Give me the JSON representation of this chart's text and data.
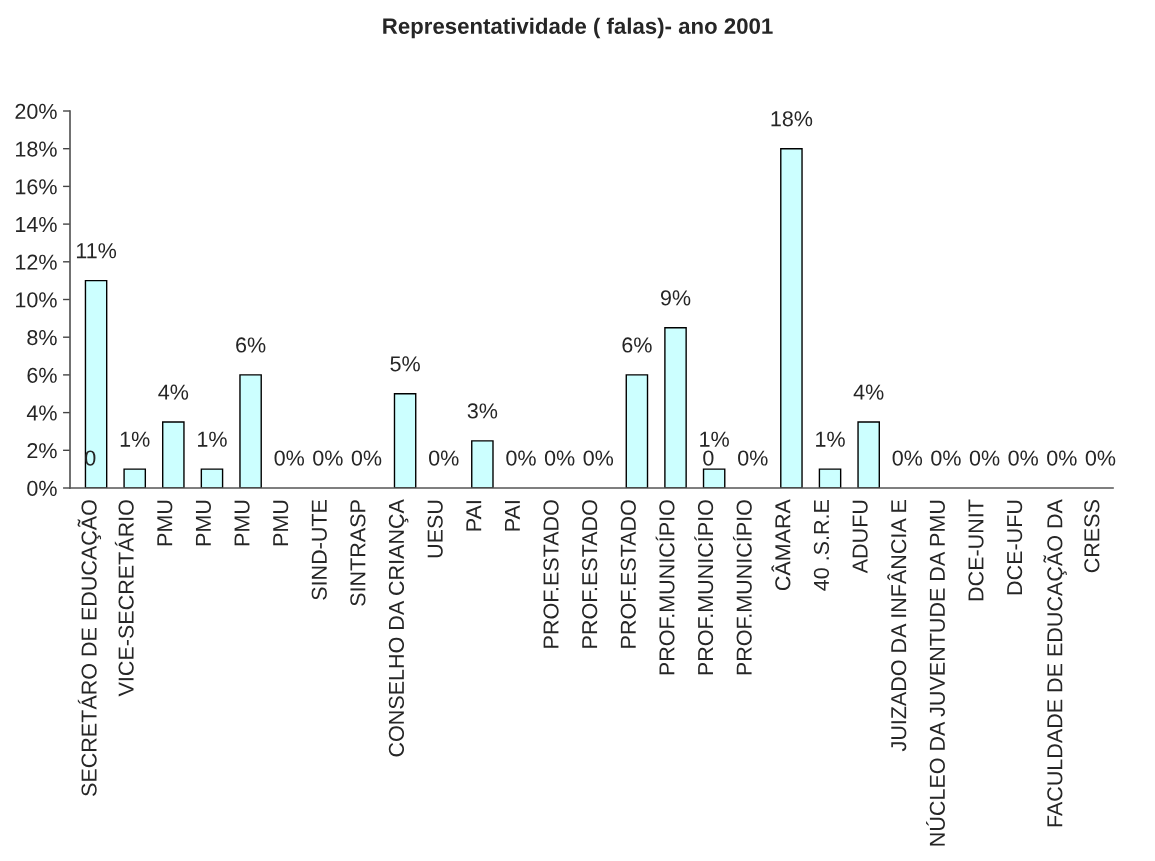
{
  "chart_data": {
    "type": "bar",
    "title": "Representatividade ( falas)- ano 2001",
    "categories": [
      "SECRETÁRO DE EDUCAÇÃO",
      "VICE-SECRETÁRIO",
      "PMU",
      "PMU",
      "PMU",
      "PMU",
      "SIND-UTE",
      "SINTRASP",
      "CONSELHO DA CRIANÇA",
      "UESU",
      "PAI",
      "PAI",
      "PROF.ESTADO",
      "PROF.ESTADO",
      "PROF.ESTADO",
      "PROF.MUNICÍPIO",
      "PROF.MUNICÍPIO",
      "PROF.MUNICÍPIO",
      "CÂMARA",
      "40 .S.R.E",
      "ADUFU",
      "JUIZADO DA INFÂNCIA E",
      "NÚCLEO DA JUVENTUDE DA PMU",
      "DCE-UNIT",
      "DCE-UFU",
      "FACULDADE DE EDUCAÇÃO DA",
      "CRESS"
    ],
    "series": [
      {
        "color": "#ccffff",
        "values": [
          0,
          null,
          null,
          null,
          null,
          null,
          null,
          null,
          null,
          null,
          null,
          null,
          null,
          null,
          null,
          null,
          0,
          null,
          null,
          null,
          null,
          null,
          null,
          null,
          null,
          null,
          null
        ],
        "value_labels": [
          "0",
          null,
          null,
          null,
          null,
          null,
          null,
          null,
          null,
          null,
          null,
          null,
          null,
          null,
          null,
          null,
          "0",
          null,
          null,
          null,
          null,
          null,
          null,
          null,
          null,
          null,
          null
        ]
      },
      {
        "color": "#ccffff",
        "values": [
          11,
          1,
          3.5,
          1,
          6,
          0,
          0,
          0,
          5,
          0,
          2.5,
          0,
          0,
          0,
          6,
          8.5,
          1,
          0,
          18,
          1,
          3.5,
          0,
          0,
          0,
          0,
          0,
          0
        ],
        "value_labels": [
          "11%",
          "1%",
          "4%",
          "1%",
          "6%",
          "0%",
          "0%",
          "0%",
          "5%",
          "0%",
          "3%",
          "0%",
          "0%",
          "0%",
          "6%",
          "9%",
          "1%",
          "0%",
          "18%",
          "1%",
          "4%",
          "0%",
          "0%",
          "0%",
          "0%",
          "0%",
          "0%"
        ]
      }
    ],
    "ylim": [
      0,
      20
    ],
    "yticks": [
      {
        "value": 0,
        "label": "0%"
      },
      {
        "value": 2,
        "label": "2%"
      },
      {
        "value": 4,
        "label": "4%"
      },
      {
        "value": 6,
        "label": "6%"
      },
      {
        "value": 8,
        "label": "8%"
      },
      {
        "value": 10,
        "label": "10%"
      },
      {
        "value": 12,
        "label": "12%"
      },
      {
        "value": 14,
        "label": "14%"
      },
      {
        "value": 16,
        "label": "16%"
      },
      {
        "value": 18,
        "label": "18%"
      },
      {
        "value": 20,
        "label": "20%"
      }
    ],
    "grid": false
  }
}
